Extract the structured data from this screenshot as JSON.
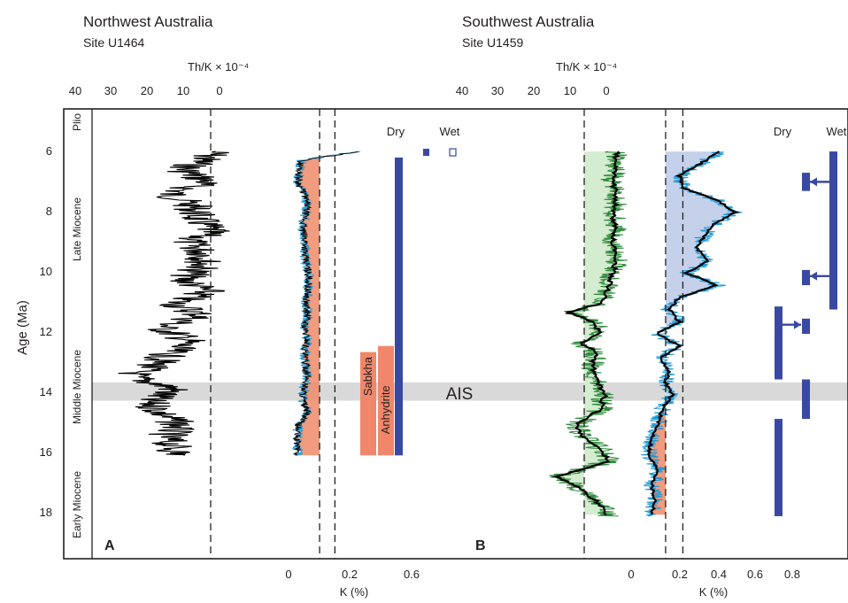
{
  "colors": {
    "axis": "#231f20",
    "green_fill": "#d4ecd0",
    "green_line": "#2e8b3a",
    "orange_fill": "#ee8a68",
    "blue_fill": "#b7c6e6",
    "cyan_line": "#1f9ad6",
    "bar_blue": "#3949a3",
    "sabkha": "#f0876a",
    "ais_band": "#d9d9d9"
  },
  "panels": {
    "a": {
      "title": "Northwest Australia",
      "site": "Site U1464",
      "letter": "A",
      "top_axis_label": "Th/K × 10⁻⁴",
      "bottom_axis_label": "K (%)"
    },
    "b": {
      "title": "Southwest Australia",
      "site": "Site U1459",
      "letter": "B",
      "top_axis_label": "Th/K × 10⁻⁴",
      "bottom_axis_label": "K (%)"
    }
  },
  "annotations": {
    "dry": "Dry",
    "wet": "Wet",
    "sabkha": "Sabkha",
    "anhydrite": "Anhydrite",
    "ais": "AIS"
  },
  "chart_data": [
    {
      "type": "line",
      "title": "Northwest Australia — Site U1464",
      "ylabel": "Age (Ma)",
      "ylim": [
        19.4,
        4.6
      ],
      "y_ticks": [
        "6",
        "8",
        "10",
        "12",
        "14",
        "16",
        "18"
      ],
      "epochs": [
        "Plio",
        "Late Miocene",
        "Middle Miocene",
        "Early Miocene"
      ],
      "ais_band": [
        13.6,
        14.2
      ],
      "series": [
        {
          "axis": "Th/K × 10⁻⁴",
          "xlim": [
            40,
            0
          ],
          "x_ticks": [
            "40",
            "30",
            "20",
            "10",
            "0"
          ],
          "ref_line": 10,
          "age": [
            6.0,
            6.3,
            6.6,
            7.0,
            7.4,
            7.8,
            8.2,
            8.6,
            9.0,
            9.4,
            9.8,
            10.2,
            10.6,
            11.0,
            11.4,
            11.8,
            12.2,
            12.6,
            13.0,
            13.4,
            13.8,
            14.2,
            14.6,
            15.0,
            15.4,
            15.8,
            16.0
          ],
          "value": [
            9,
            12,
            16,
            11,
            19,
            14,
            13,
            10,
            15,
            11,
            12,
            16,
            11,
            18,
            12,
            21,
            15,
            19,
            22,
            28,
            18,
            24,
            21,
            17,
            20,
            18,
            17
          ]
        },
        {
          "axis": "K (%)",
          "xlim": [
            -0.13,
            0.83
          ],
          "x_ticks": [
            "0",
            "0.2",
            "0.6"
          ],
          "ref_lines": [
            0.2,
            0.3
          ],
          "age": [
            6.0,
            6.3,
            6.6,
            7.0,
            7.4,
            7.8,
            8.2,
            8.6,
            9.0,
            9.4,
            9.8,
            10.2,
            10.6,
            11.0,
            11.4,
            11.8,
            12.2,
            12.6,
            13.0,
            13.4,
            13.8,
            14.2,
            14.6,
            15.0,
            15.4,
            15.8,
            16.0
          ],
          "value": [
            0.45,
            0.08,
            0.07,
            0.06,
            0.1,
            0.12,
            0.1,
            0.09,
            0.11,
            0.1,
            0.12,
            0.13,
            0.12,
            0.11,
            0.12,
            0.1,
            0.12,
            0.1,
            0.11,
            0.12,
            0.1,
            0.09,
            0.12,
            0.06,
            0.05,
            0.06,
            0.05
          ]
        }
      ],
      "intervals": [
        {
          "label": "Dry",
          "from": 6.2,
          "to": 16.0
        },
        {
          "label": "Sabkha",
          "from": 12.6,
          "to": 16.0
        },
        {
          "label": "Anhydrite",
          "from": 12.4,
          "to": 16.0
        }
      ]
    },
    {
      "type": "line",
      "title": "Southwest Australia — Site U1459",
      "ylabel": "Age (Ma)",
      "ylim": [
        19.4,
        4.6
      ],
      "series": [
        {
          "axis": "Th/K × 10⁻⁴",
          "xlim": [
            40,
            0
          ],
          "x_ticks": [
            "40",
            "30",
            "20",
            "10",
            "0"
          ],
          "ref_line": 10,
          "age": [
            6.0,
            6.5,
            7.0,
            7.5,
            8.0,
            8.5,
            9.0,
            9.5,
            10.0,
            10.5,
            11.0,
            11.3,
            11.6,
            12.0,
            12.3,
            12.6,
            13.0,
            13.5,
            14.0,
            14.5,
            15.0,
            15.4,
            15.8,
            16.2,
            16.7,
            17.0,
            17.4,
            17.8,
            18.0
          ],
          "value": [
            2,
            2.5,
            3,
            2,
            3,
            2.5,
            3,
            2,
            3,
            4,
            6,
            14,
            8,
            6,
            11,
            7,
            8,
            7,
            5,
            6,
            12,
            10,
            6,
            4,
            17,
            12,
            8,
            5,
            4
          ]
        },
        {
          "axis": "K (%)",
          "xlim": [
            0,
            0.96
          ],
          "x_ticks": [
            "0",
            "0.2",
            "0.4",
            "0.6",
            "0.8"
          ],
          "ref_lines": [
            0.2,
            0.3
          ],
          "age": [
            6.0,
            6.4,
            6.8,
            7.2,
            7.6,
            8.0,
            8.4,
            8.8,
            9.2,
            9.6,
            10.0,
            10.4,
            10.8,
            11.2,
            11.6,
            12.0,
            12.4,
            12.8,
            13.2,
            13.6,
            14.0,
            14.4,
            15.0,
            15.5,
            16.0,
            16.5,
            17.0,
            17.5,
            18.0
          ],
          "value": [
            0.52,
            0.4,
            0.28,
            0.3,
            0.5,
            0.6,
            0.48,
            0.42,
            0.38,
            0.45,
            0.32,
            0.5,
            0.28,
            0.22,
            0.28,
            0.15,
            0.28,
            0.17,
            0.22,
            0.2,
            0.24,
            0.19,
            0.15,
            0.12,
            0.1,
            0.16,
            0.12,
            0.14,
            0.12
          ]
        }
      ],
      "intervals": [
        {
          "label": "Dry",
          "from": 6.7,
          "to": 7.3
        },
        {
          "label": "Dry",
          "from": 9.9,
          "to": 10.4
        },
        {
          "label": "Dry",
          "from": 11.5,
          "to": 12.0
        },
        {
          "label": "Dry",
          "from": 13.5,
          "to": 14.8
        },
        {
          "label": "Wet",
          "from": 6.0,
          "to": 11.2
        },
        {
          "label": "Wet",
          "from": 11.1,
          "to": 13.5
        },
        {
          "label": "Wet",
          "from": 14.8,
          "to": 18.0
        }
      ]
    }
  ]
}
